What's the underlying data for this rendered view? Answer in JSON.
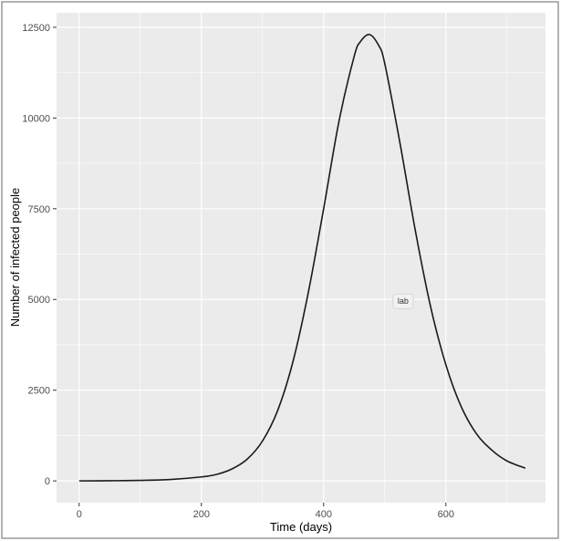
{
  "chart_data": {
    "type": "line",
    "title": "",
    "xlabel": "Time (days)",
    "ylabel": "Number of infected people",
    "xlim": [
      -37,
      763
    ],
    "ylim": [
      -600,
      12900
    ],
    "x_ticks": [
      0,
      200,
      400,
      600
    ],
    "y_ticks": [
      0,
      2500,
      5000,
      7500,
      10000,
      12500
    ],
    "x_tick_labels": [
      "0",
      "200",
      "400",
      "600"
    ],
    "y_tick_labels": [
      "0",
      "2500",
      "5000",
      "7500",
      "10000",
      "12500"
    ],
    "grid": true,
    "legend": "none",
    "annotation": {
      "text": "lab",
      "x": 530,
      "y": 4950
    },
    "series": [
      {
        "x": [
          0,
          50,
          100,
          150,
          200,
          225,
          250,
          275,
          300,
          325,
          350,
          375,
          400,
          425,
          450,
          460,
          475,
          490,
          500,
          525,
          550,
          575,
          600,
          625,
          650,
          675,
          700,
          730
        ],
        "values": [
          0,
          5,
          15,
          40,
          110,
          180,
          330,
          600,
          1100,
          1950,
          3300,
          5200,
          7500,
          9900,
          11700,
          12100,
          12300,
          12000,
          11500,
          9300,
          6900,
          4800,
          3200,
          2050,
          1300,
          850,
          550,
          350
        ]
      }
    ]
  },
  "colors": {
    "panel_background": "#ebebeb",
    "grid_major": "#ffffff",
    "line": "#1a1a1a",
    "frame": "#999999"
  }
}
